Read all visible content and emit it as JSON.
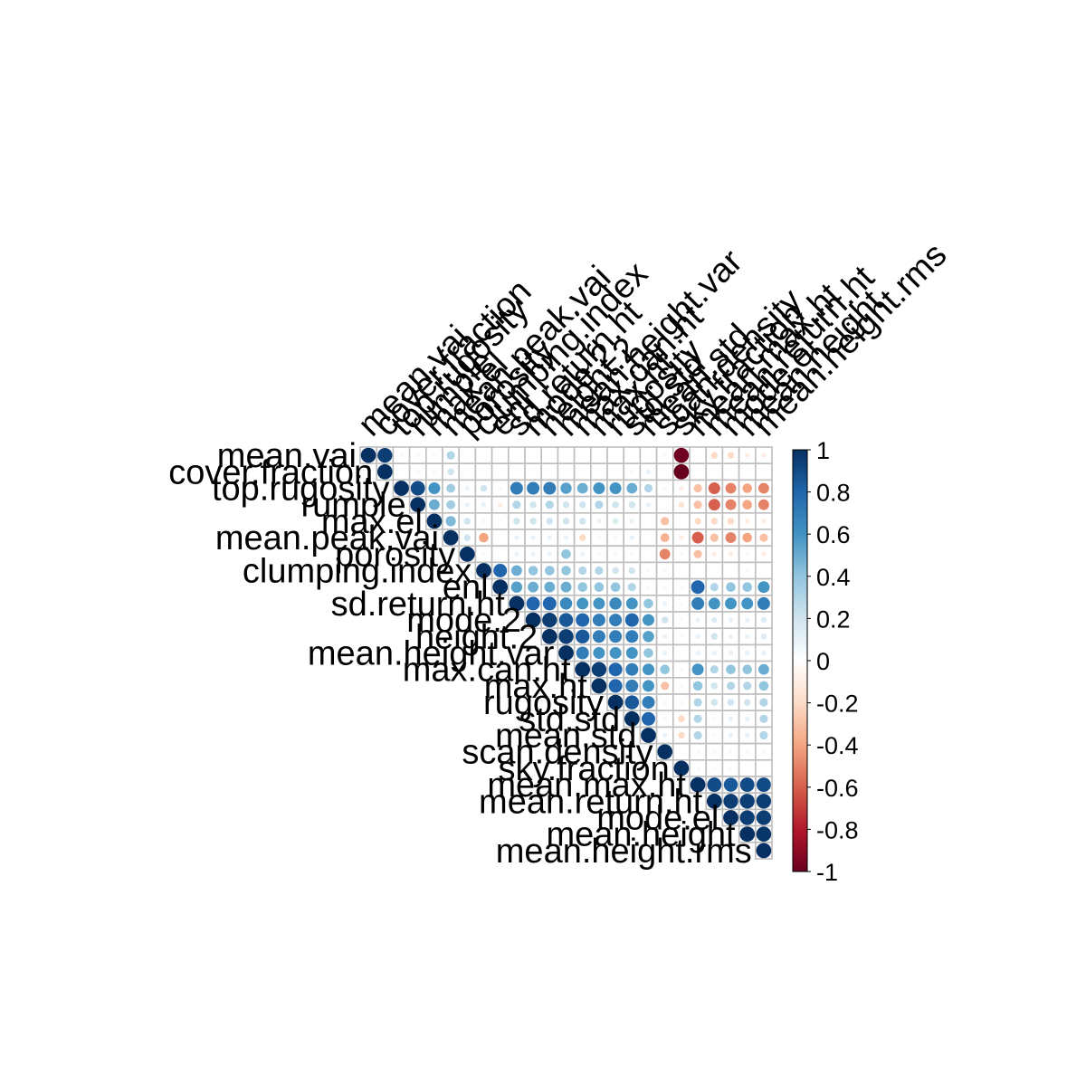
{
  "chart_data": {
    "type": "heatmap",
    "style": "upper-triangle correlation matrix, circles sized and coloured by correlation",
    "variables": [
      "mean.vai",
      "cover.fraction",
      "top.rugosity",
      "rumple",
      "max.el",
      "mean.peak.vai",
      "porosity",
      "clumping.index",
      "enl",
      "sd.return.ht",
      "mode.2",
      "height.2",
      "mean.height.var",
      "max.can.ht",
      "max.ht",
      "rugosity",
      "std.std",
      "mean.std",
      "scan.density",
      "sky.fraction",
      "mean.max.ht",
      "mean.return.ht",
      "mode.el",
      "mean.height",
      "mean.height.rms"
    ],
    "color_scale": {
      "min": -1,
      "max": 1,
      "ticks": [
        1,
        0.8,
        0.6,
        0.4,
        0.2,
        0,
        -0.2,
        -0.4,
        -0.6,
        -0.8,
        -1
      ],
      "tick_labels": [
        "1",
        "0.8",
        "0.6",
        "0.4",
        "0.2",
        "0",
        "-0.2",
        "-0.4",
        "-0.6",
        "-0.8",
        "-1"
      ],
      "colors": [
        "#67001F",
        "#B2182B",
        "#D6604D",
        "#F4A582",
        "#FDDBC7",
        "#FFFFFF",
        "#D1E5F0",
        "#92C5DE",
        "#4393C3",
        "#2166AC",
        "#053061"
      ]
    },
    "grid_color": "#BEBEBE",
    "matrix": [
      [
        1.0,
        0.95,
        0.05,
        0.05,
        0.05,
        0.3,
        0.0,
        0.0,
        0.0,
        0.0,
        0.0,
        0.0,
        0.0,
        0.0,
        0.0,
        0.0,
        0.0,
        0.0,
        0.05,
        -0.98,
        0.0,
        -0.2,
        -0.2,
        -0.1,
        -0.1
      ],
      [
        null,
        1.0,
        0.0,
        0.05,
        0.05,
        0.2,
        0.0,
        0.0,
        0.0,
        0.0,
        0.0,
        0.0,
        0.0,
        0.0,
        0.0,
        0.0,
        0.05,
        0.1,
        0.0,
        -1.0,
        0.0,
        0.0,
        0.0,
        0.0,
        0.0
      ],
      [
        null,
        null,
        1.0,
        0.9,
        0.6,
        0.35,
        0.1,
        0.2,
        0.05,
        0.7,
        0.7,
        0.7,
        0.55,
        0.5,
        0.6,
        0.6,
        0.5,
        0.3,
        0.05,
        -0.1,
        -0.3,
        -0.6,
        -0.5,
        -0.4,
        -0.5
      ],
      [
        null,
        null,
        null,
        1.0,
        0.5,
        0.35,
        0.1,
        0.1,
        -0.1,
        0.3,
        0.2,
        0.3,
        0.2,
        0.2,
        0.3,
        0.2,
        0.2,
        0.1,
        0.0,
        -0.15,
        -0.3,
        -0.6,
        -0.5,
        -0.4,
        -0.5
      ],
      [
        null,
        null,
        null,
        null,
        1.0,
        0.45,
        0.2,
        0.05,
        -0.05,
        0.2,
        0.2,
        0.2,
        0.2,
        0.2,
        0.1,
        0.15,
        0.1,
        0.0,
        -0.3,
        0.0,
        -0.2,
        -0.2,
        -0.2,
        -0.1,
        -0.1
      ],
      [
        null,
        null,
        null,
        null,
        null,
        1.0,
        0.2,
        -0.4,
        0.0,
        0.1,
        0.1,
        0.1,
        0.1,
        -0.2,
        0.05,
        0.05,
        0.1,
        0.0,
        -0.35,
        -0.1,
        -0.6,
        -0.3,
        -0.5,
        -0.4,
        -0.3
      ],
      [
        null,
        null,
        null,
        null,
        null,
        null,
        1.0,
        0.05,
        0.0,
        0.1,
        0.1,
        0.1,
        0.4,
        0.1,
        0.05,
        0.05,
        0.05,
        0.0,
        -0.5,
        -0.05,
        -0.3,
        -0.1,
        -0.1,
        0.05,
        -0.1
      ],
      [
        null,
        null,
        null,
        null,
        null,
        null,
        null,
        1.0,
        0.8,
        0.5,
        0.4,
        0.4,
        0.4,
        0.3,
        0.3,
        0.2,
        0.2,
        0.05,
        -0.05,
        0.0,
        0.0,
        0.0,
        0.0,
        0.05,
        0.0
      ],
      [
        null,
        null,
        null,
        null,
        null,
        null,
        null,
        null,
        1.0,
        0.55,
        0.5,
        0.5,
        0.5,
        0.4,
        0.4,
        0.4,
        0.3,
        0.05,
        0.05,
        0.05,
        0.8,
        0.3,
        0.4,
        0.4,
        0.6
      ],
      [
        null,
        null,
        null,
        null,
        null,
        null,
        null,
        null,
        null,
        1.0,
        0.8,
        0.8,
        0.65,
        0.6,
        0.6,
        0.65,
        0.6,
        0.4,
        0.1,
        0.05,
        0.7,
        0.6,
        0.6,
        0.6,
        0.7
      ],
      [
        null,
        null,
        null,
        null,
        null,
        null,
        null,
        null,
        null,
        null,
        1.0,
        0.95,
        0.85,
        0.8,
        0.7,
        0.7,
        0.8,
        0.6,
        0.2,
        0.05,
        0.1,
        0.15,
        0.1,
        0.1,
        0.15
      ],
      [
        null,
        null,
        null,
        null,
        null,
        null,
        null,
        null,
        null,
        null,
        null,
        1.0,
        0.95,
        0.85,
        0.7,
        0.7,
        0.7,
        0.55,
        0.1,
        0.05,
        0.1,
        0.2,
        0.1,
        0.1,
        0.15
      ],
      [
        null,
        null,
        null,
        null,
        null,
        null,
        null,
        null,
        null,
        null,
        null,
        null,
        1.0,
        0.7,
        0.6,
        0.6,
        0.6,
        0.4,
        0.1,
        0.0,
        0.1,
        0.1,
        0.1,
        0.1,
        0.1
      ],
      [
        null,
        null,
        null,
        null,
        null,
        null,
        null,
        null,
        null,
        null,
        null,
        null,
        null,
        1.0,
        0.95,
        0.8,
        0.7,
        0.6,
        0.4,
        0.05,
        0.6,
        0.3,
        0.4,
        0.4,
        0.5
      ],
      [
        null,
        null,
        null,
        null,
        null,
        null,
        null,
        null,
        null,
        null,
        null,
        null,
        null,
        null,
        1.0,
        0.8,
        0.7,
        0.6,
        -0.3,
        0.05,
        0.4,
        0.2,
        0.3,
        0.3,
        0.4
      ],
      [
        null,
        null,
        null,
        null,
        null,
        null,
        null,
        null,
        null,
        null,
        null,
        null,
        null,
        null,
        null,
        1.0,
        0.85,
        0.7,
        0.05,
        0.05,
        0.3,
        0.2,
        0.2,
        0.2,
        0.3
      ],
      [
        null,
        null,
        null,
        null,
        null,
        null,
        null,
        null,
        null,
        null,
        null,
        null,
        null,
        null,
        null,
        null,
        1.0,
        0.8,
        0.05,
        -0.2,
        0.3,
        0.05,
        0.1,
        0.1,
        0.3
      ],
      [
        null,
        null,
        null,
        null,
        null,
        null,
        null,
        null,
        null,
        null,
        null,
        null,
        null,
        null,
        null,
        null,
        null,
        1.0,
        0.1,
        -0.2,
        0.3,
        0.05,
        0.1,
        0.1,
        0.3
      ],
      [
        null,
        null,
        null,
        null,
        null,
        null,
        null,
        null,
        null,
        null,
        null,
        null,
        null,
        null,
        null,
        null,
        null,
        null,
        1.0,
        0.0,
        0.05,
        0.05,
        0.05,
        0.05,
        0.05
      ],
      [
        null,
        null,
        null,
        null,
        null,
        null,
        null,
        null,
        null,
        null,
        null,
        null,
        null,
        null,
        null,
        null,
        null,
        null,
        null,
        1.0,
        0.05,
        0.05,
        0.05,
        0.0,
        0.0
      ],
      [
        null,
        null,
        null,
        null,
        null,
        null,
        null,
        null,
        null,
        null,
        null,
        null,
        null,
        null,
        null,
        null,
        null,
        null,
        null,
        null,
        1.0,
        0.9,
        0.85,
        0.9,
        0.9
      ],
      [
        null,
        null,
        null,
        null,
        null,
        null,
        null,
        null,
        null,
        null,
        null,
        null,
        null,
        null,
        null,
        null,
        null,
        null,
        null,
        null,
        null,
        1.0,
        0.95,
        0.95,
        0.95
      ],
      [
        null,
        null,
        null,
        null,
        null,
        null,
        null,
        null,
        null,
        null,
        null,
        null,
        null,
        null,
        null,
        null,
        null,
        null,
        null,
        null,
        null,
        null,
        1.0,
        0.95,
        0.95
      ],
      [
        null,
        null,
        null,
        null,
        null,
        null,
        null,
        null,
        null,
        null,
        null,
        null,
        null,
        null,
        null,
        null,
        null,
        null,
        null,
        null,
        null,
        null,
        null,
        1.0,
        0.98
      ],
      [
        null,
        null,
        null,
        null,
        null,
        null,
        null,
        null,
        null,
        null,
        null,
        null,
        null,
        null,
        null,
        null,
        null,
        null,
        null,
        null,
        null,
        null,
        null,
        null,
        1.0
      ]
    ]
  }
}
